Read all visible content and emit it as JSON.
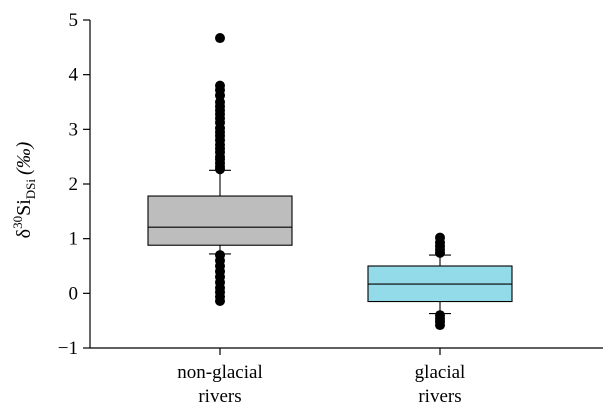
{
  "chart_data": {
    "type": "boxplot",
    "ylabel": {
      "prefix": "δ",
      "superscript": "30",
      "main": "Si",
      "subscript": "DSi",
      "unit": "(‰)"
    },
    "ylim": [
      -1,
      5
    ],
    "yticks": [
      -1,
      0,
      1,
      2,
      3,
      4,
      5
    ],
    "ytick_labels": [
      "−1",
      "0",
      "1",
      "2",
      "3",
      "4",
      "5"
    ],
    "grid": false,
    "legend": "none",
    "categories": [
      {
        "lines": [
          "non-glacial",
          "rivers"
        ]
      },
      {
        "lines": [
          "glacial",
          "rivers"
        ]
      }
    ],
    "series": [
      {
        "q1": 0.88,
        "median": 1.21,
        "q3": 1.78,
        "whisker_low": 0.72,
        "whisker_high": 2.25,
        "fill": "#bdbdbd",
        "outliers": [
          4.67,
          3.8,
          3.72,
          3.62,
          3.5,
          3.42,
          3.35,
          3.28,
          3.2,
          3.12,
          3.02,
          2.95,
          2.88,
          2.8,
          2.72,
          2.65,
          2.58,
          2.5,
          2.45,
          2.38,
          2.32,
          2.27,
          0.7,
          0.6,
          0.5,
          0.4,
          0.3,
          0.2,
          0.1,
          0.02,
          -0.06,
          -0.14
        ]
      },
      {
        "q1": -0.15,
        "median": 0.17,
        "q3": 0.5,
        "whisker_low": -0.37,
        "whisker_high": 0.7,
        "fill": "#93dbe9",
        "outliers": [
          1.02,
          0.93,
          0.86,
          0.8,
          0.74,
          -0.4,
          -0.46,
          -0.52,
          -0.58
        ]
      }
    ]
  }
}
